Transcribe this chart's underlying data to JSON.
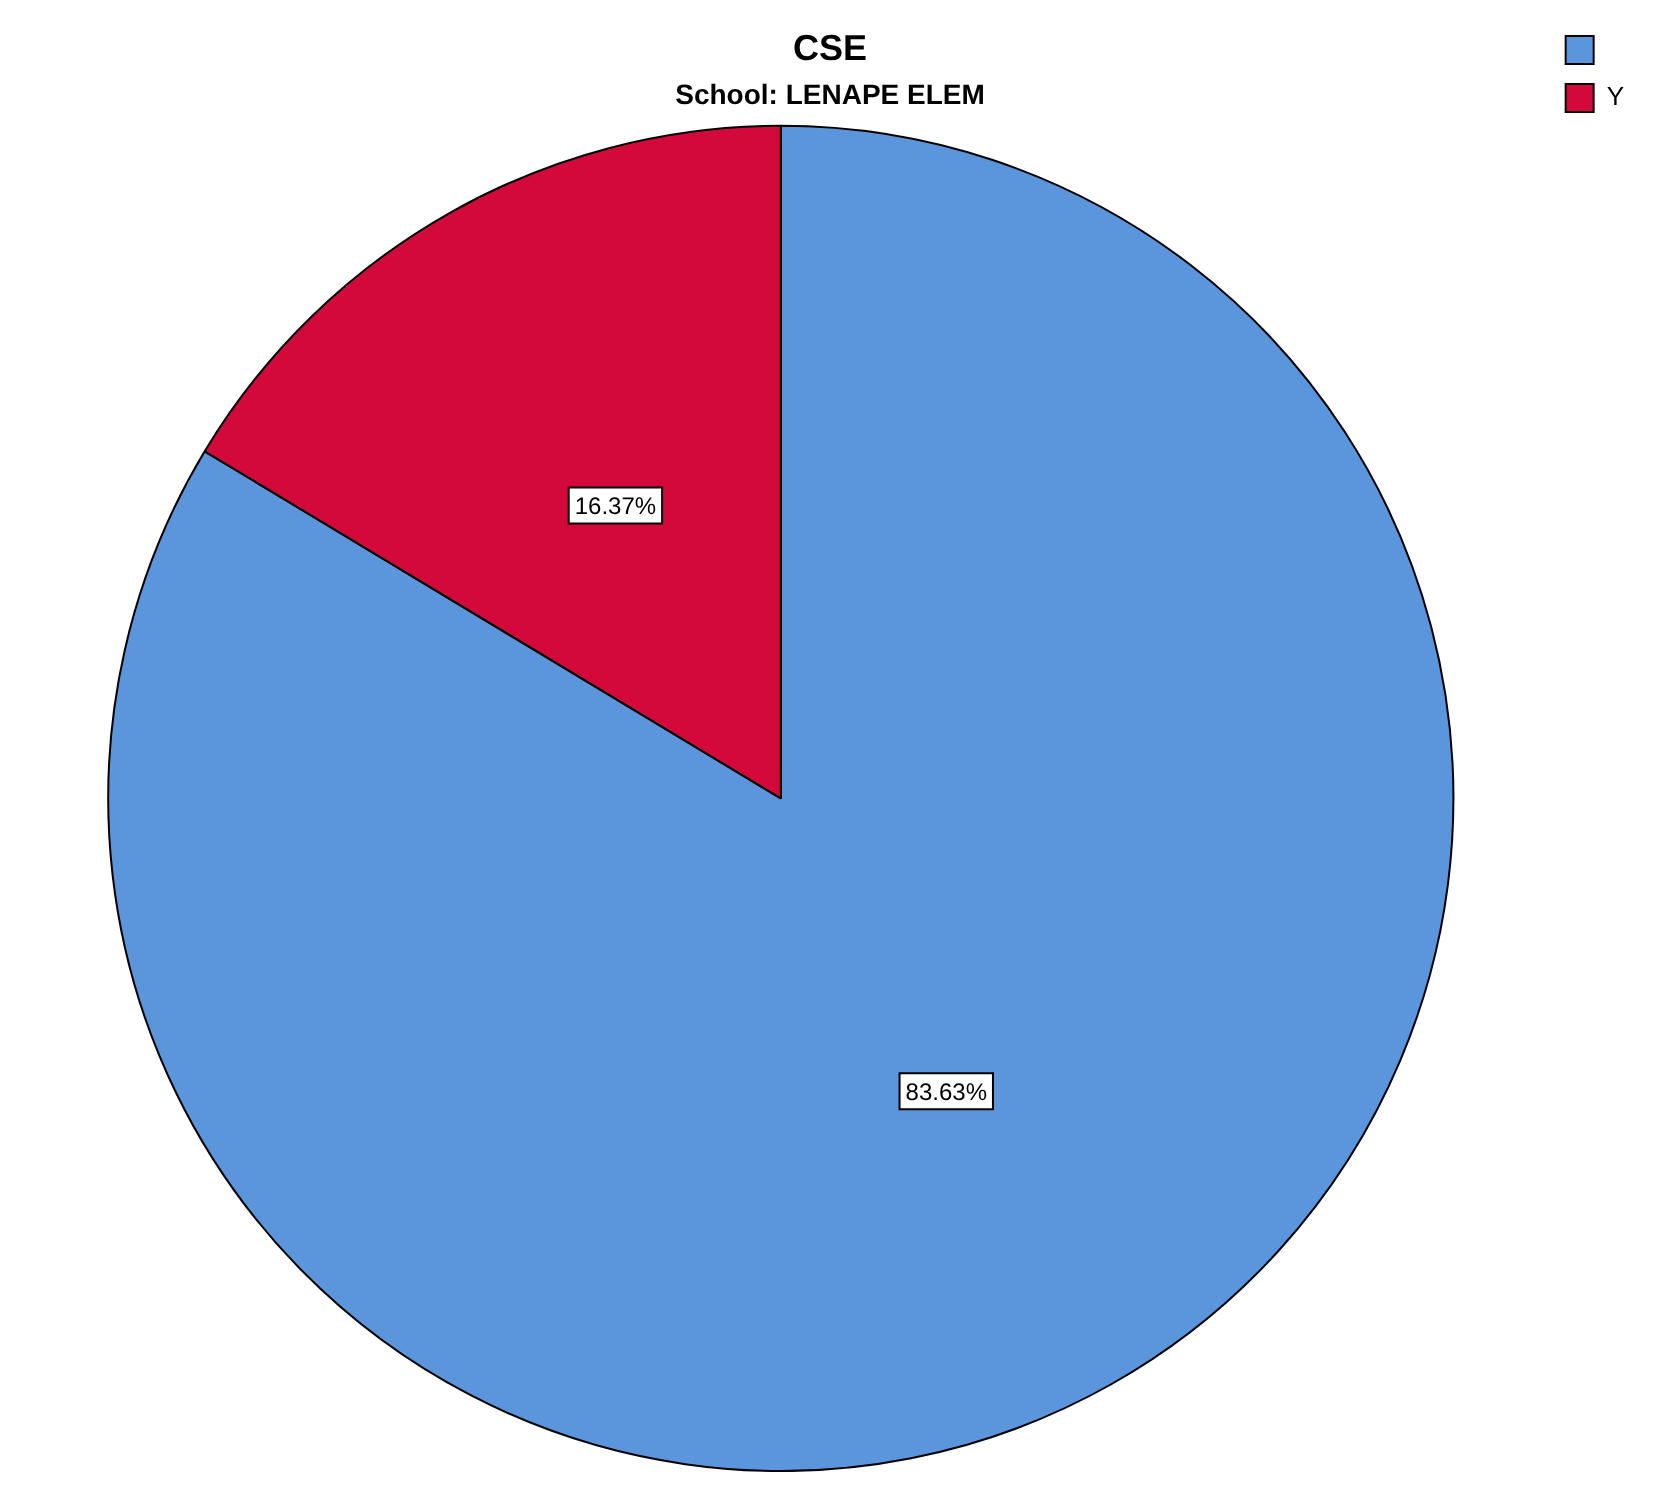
{
  "chart_data": {
    "type": "pie",
    "title": "CSE",
    "subtitle": "School: LENAPE ELEM",
    "categories": [
      null,
      "Y"
    ],
    "values": [
      83.63,
      16.37
    ],
    "colors": [
      "#5b95dc",
      "#d2093a"
    ],
    "value_labels": [
      "83.63%",
      "16.37%"
    ],
    "legend": "top right"
  }
}
